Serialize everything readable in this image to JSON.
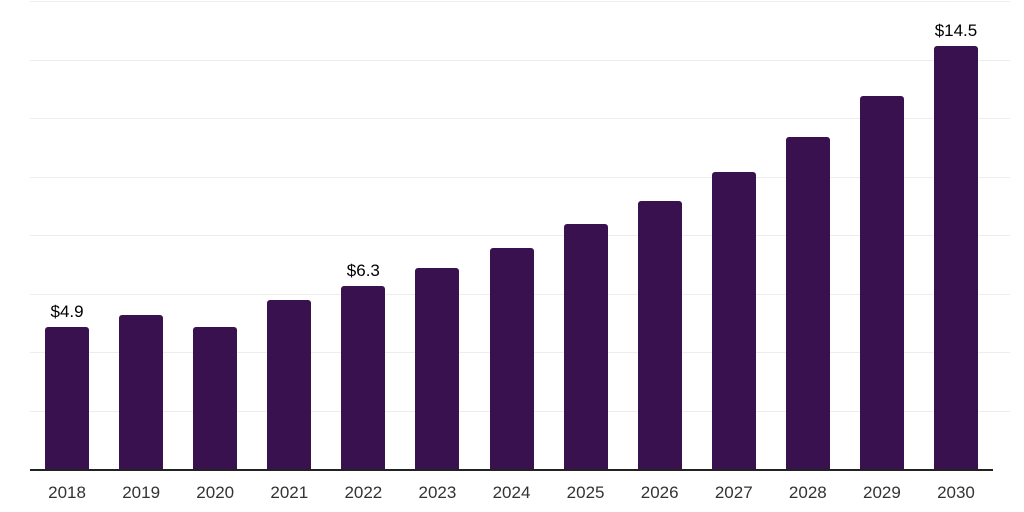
{
  "chart_data": {
    "type": "bar",
    "title": "",
    "xlabel": "",
    "ylabel": "",
    "categories": [
      "2018",
      "2019",
      "2020",
      "2021",
      "2022",
      "2023",
      "2024",
      "2025",
      "2026",
      "2027",
      "2028",
      "2029",
      "2030"
    ],
    "values": [
      4.9,
      5.3,
      4.9,
      5.8,
      6.3,
      6.9,
      7.6,
      8.4,
      9.2,
      10.2,
      11.4,
      12.8,
      14.5
    ],
    "data_labels": [
      "$4.9",
      "",
      "",
      "",
      "$6.3",
      "",
      "",
      "",
      "",
      "",
      "",
      "",
      "$14.5"
    ],
    "ylim": [
      0,
      16
    ],
    "gridline_interval": 2,
    "grid": "horizontal",
    "legend": "none",
    "colors": {
      "bar": "#38114e",
      "axis_line": "#222222",
      "gridline": "#ededed",
      "tick_label": "#333333",
      "data_label": "#000000"
    }
  }
}
